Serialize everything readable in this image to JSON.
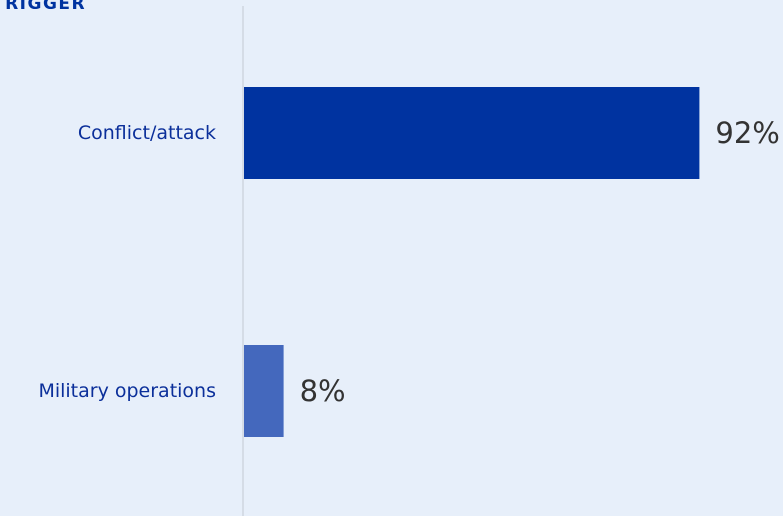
{
  "header": {
    "title": "TRIGGER"
  },
  "colors": {
    "background": "#e7effa",
    "axis": "#cfd6df",
    "category_label": "#0b2f9a",
    "value_label": "#333333"
  },
  "chart_data": {
    "type": "bar",
    "orientation": "horizontal",
    "title": "TRIGGER",
    "categories": [
      "Conflict/attack",
      "Military operations"
    ],
    "values": [
      92,
      8
    ],
    "value_labels": [
      "92%",
      "8%"
    ],
    "bar_colors": [
      "#0033a0",
      "#4468bd"
    ],
    "xlim": [
      0,
      100
    ],
    "unit": "%",
    "grid": false,
    "legend": "none"
  }
}
